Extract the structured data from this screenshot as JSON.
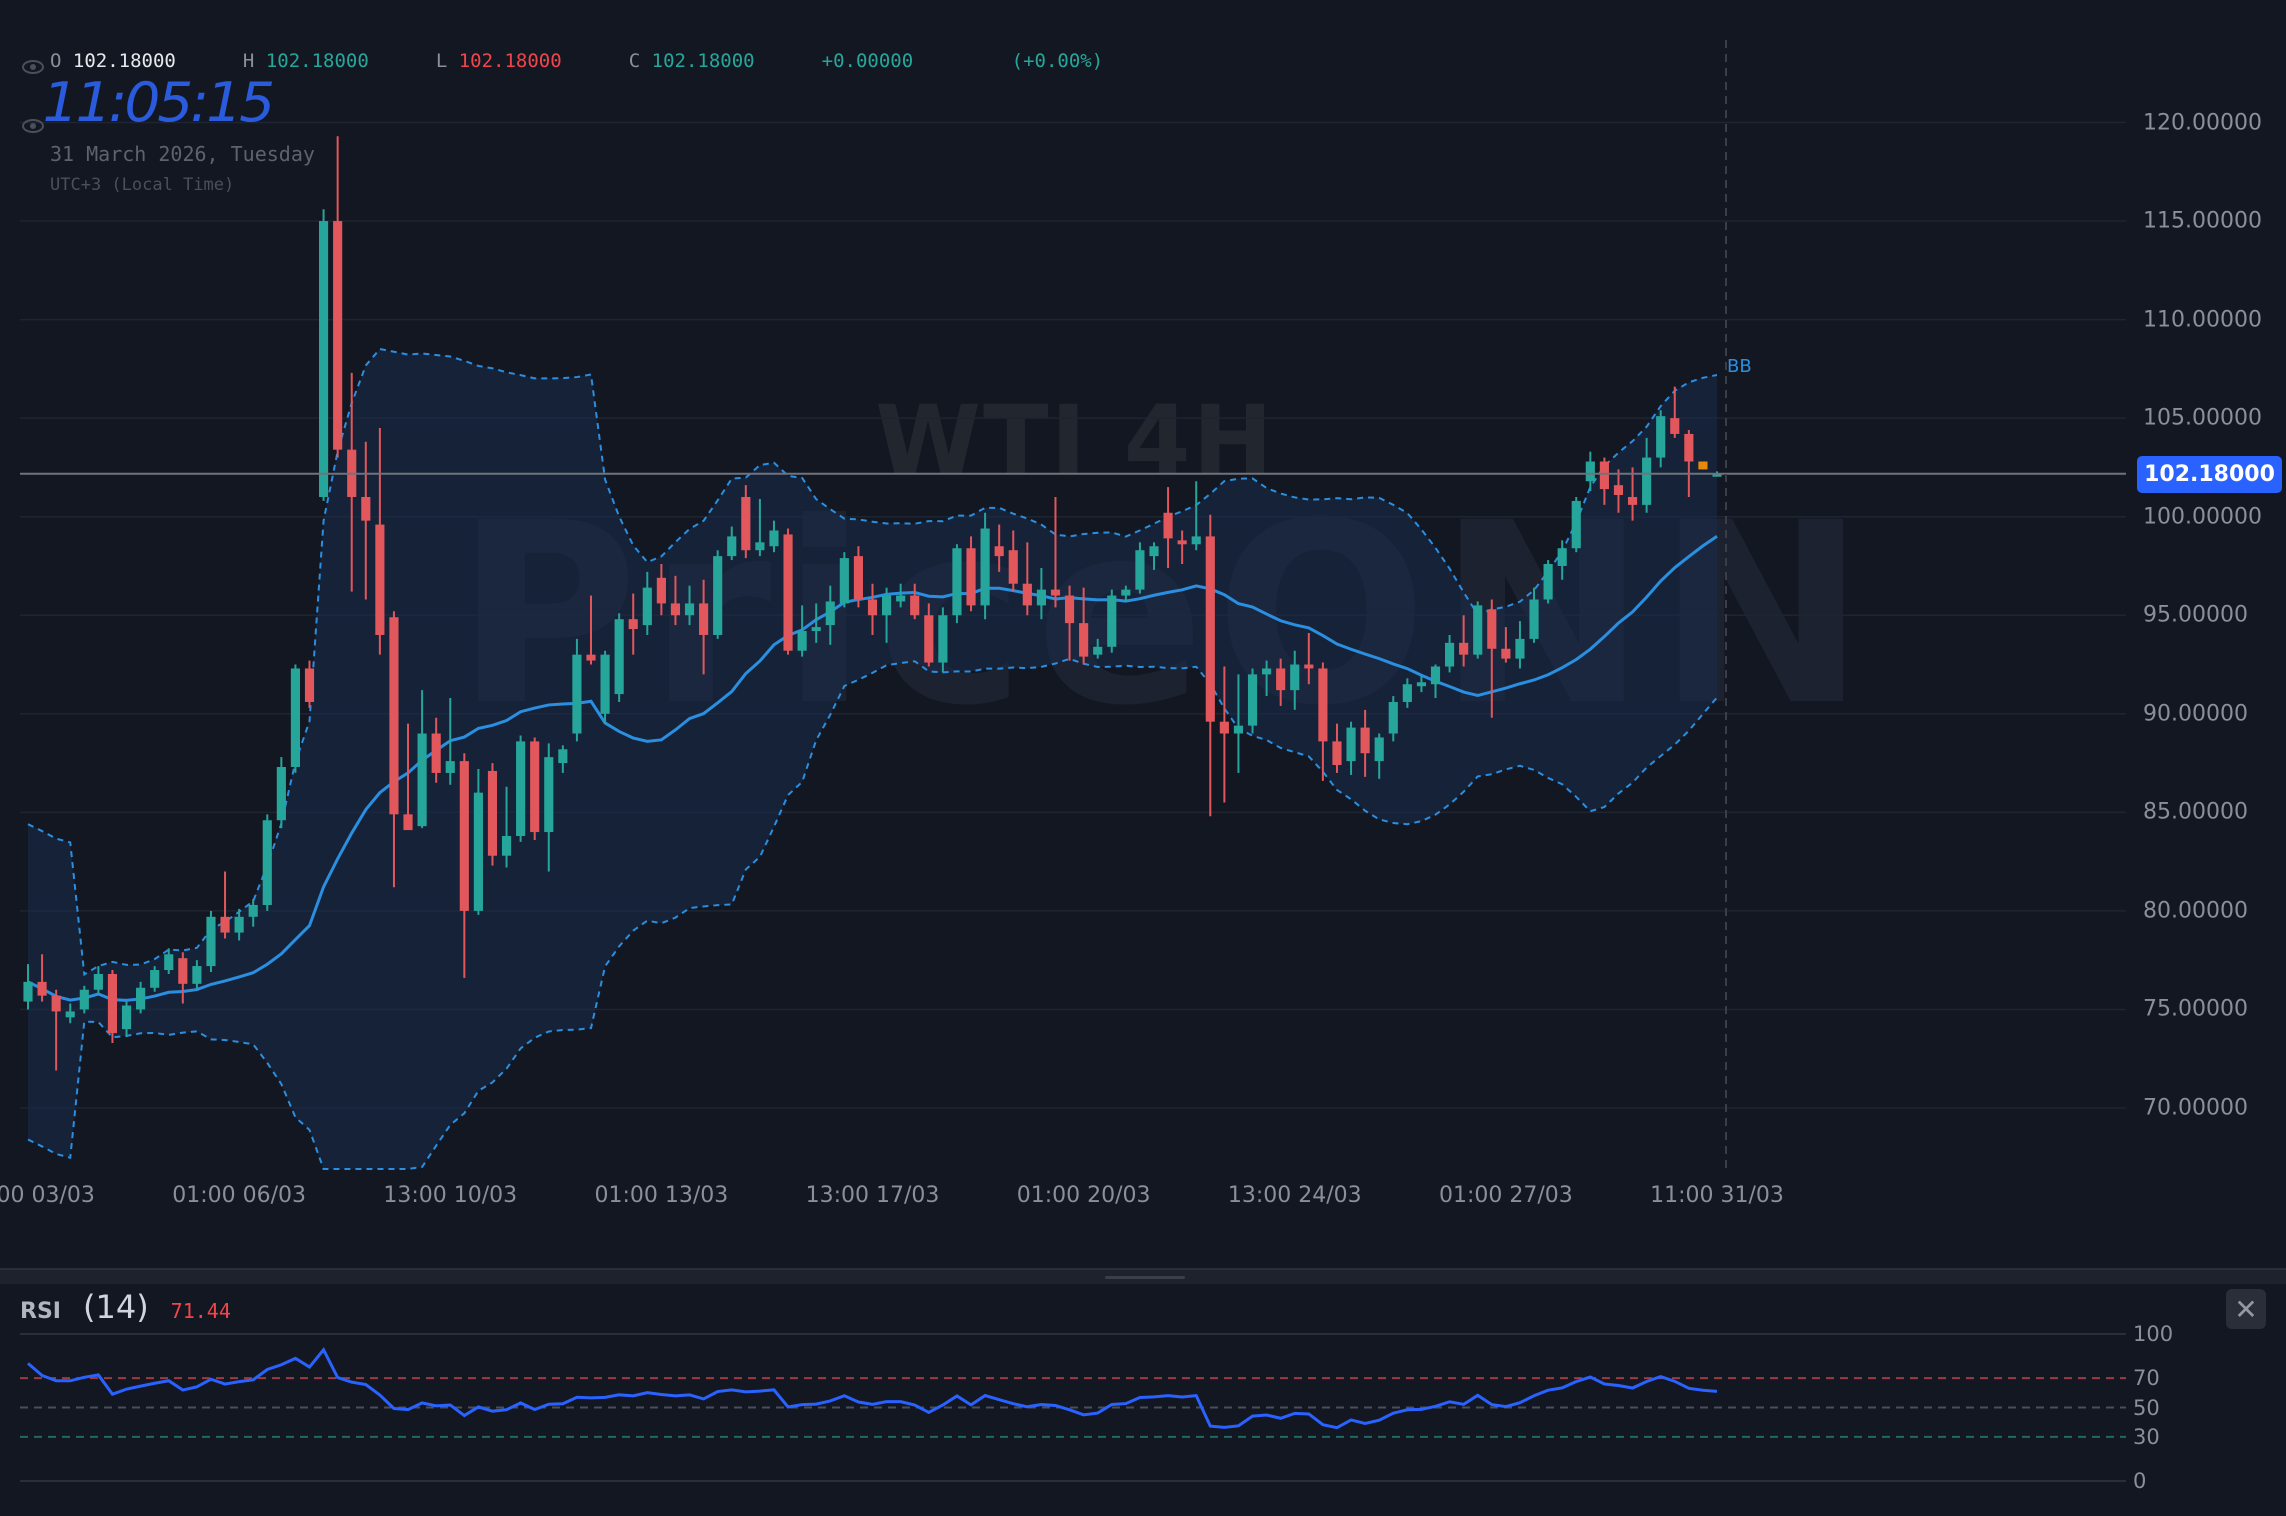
{
  "legend": {
    "open_label": "O",
    "open": "102.18000",
    "high_label": "H",
    "high": "102.18000",
    "low_label": "L",
    "low": "102.18000",
    "close_label": "C",
    "close": "102.18000",
    "change": "+0.00000",
    "change_pct": "(+0.00%)"
  },
  "clock": {
    "time": "11:05:15",
    "date": "31 March 2026, Tuesday",
    "timezone": "UTC+3 (Local Time)"
  },
  "watermark": {
    "symbol": "WTI 4H",
    "logo": "PriceONN"
  },
  "current_price": "102.18000",
  "indicator_label": "BB",
  "colors": {
    "up": "#26a69a",
    "down": "#e2575c",
    "highlight": "#e8890c",
    "accent": "#2962ff",
    "bb": "#2a8fe0",
    "rsi": "#2962ff",
    "background": "#131722"
  },
  "rsi": {
    "name": "RSI",
    "length": "(14)",
    "value": "71.44",
    "levels": [
      "100",
      "70",
      "50",
      "30",
      "0"
    ]
  },
  "chart_data": {
    "type": "candlestick",
    "ylim": [
      66.9,
      124.2
    ],
    "y_ticks": [
      "120.00000",
      "115.00000",
      "110.00000",
      "105.00000",
      "100.00000",
      "95.00000",
      "90.00000",
      "85.00000",
      "80.00000",
      "75.00000",
      "70.00000"
    ],
    "x_ticks": [
      "01:00 03/03",
      "01:00 06/03",
      "13:00 10/03",
      "01:00 13/03",
      "13:00 17/03",
      "01:00 20/03",
      "13:00 24/03",
      "01:00 27/03",
      "11:00 31/03"
    ],
    "grid": true,
    "overlay": {
      "name": "BB",
      "period": 20,
      "stddev": 2
    },
    "highlight_candle": 119,
    "ohlc": [
      [
        75.4,
        77.3,
        75.0,
        76.4
      ],
      [
        76.4,
        77.8,
        75.4,
        75.7
      ],
      [
        75.7,
        76.0,
        71.9,
        74.9
      ],
      [
        74.6,
        75.3,
        74.3,
        74.9
      ],
      [
        75.0,
        76.2,
        74.8,
        76.0
      ],
      [
        76.0,
        77.2,
        75.8,
        76.8
      ],
      [
        76.8,
        77.0,
        73.3,
        73.8
      ],
      [
        74.0,
        75.4,
        73.6,
        75.2
      ],
      [
        75.0,
        76.4,
        74.8,
        76.1
      ],
      [
        76.1,
        77.2,
        75.9,
        77.0
      ],
      [
        77.0,
        78.1,
        76.8,
        77.8
      ],
      [
        77.6,
        77.9,
        75.3,
        76.3
      ],
      [
        76.3,
        77.5,
        76.0,
        77.2
      ],
      [
        77.2,
        80.0,
        76.9,
        79.7
      ],
      [
        79.7,
        82.0,
        78.6,
        78.9
      ],
      [
        78.9,
        80.1,
        78.5,
        79.7
      ],
      [
        79.7,
        80.6,
        79.2,
        80.3
      ],
      [
        80.3,
        84.9,
        80.0,
        84.6
      ],
      [
        84.6,
        87.8,
        84.2,
        87.3
      ],
      [
        87.3,
        92.5,
        87.0,
        92.3
      ],
      [
        92.3,
        92.7,
        90.3,
        90.6
      ],
      [
        101.0,
        115.6,
        100.8,
        115.0
      ],
      [
        115.0,
        119.3,
        103.0,
        103.4
      ],
      [
        103.4,
        107.3,
        96.2,
        101.0
      ],
      [
        101.0,
        103.8,
        95.8,
        99.8
      ],
      [
        99.6,
        104.5,
        93.0,
        94.0
      ],
      [
        94.9,
        95.2,
        81.2,
        84.9
      ],
      [
        84.9,
        89.5,
        84.3,
        84.1
      ],
      [
        84.3,
        91.2,
        84.2,
        89.0
      ],
      [
        89.0,
        89.8,
        86.5,
        87.0
      ],
      [
        87.0,
        90.8,
        86.4,
        87.6
      ],
      [
        87.6,
        88.0,
        76.6,
        80.0
      ],
      [
        80.0,
        87.2,
        79.8,
        86.0
      ],
      [
        87.1,
        87.5,
        82.3,
        82.8
      ],
      [
        82.8,
        86.3,
        82.2,
        83.8
      ],
      [
        83.8,
        88.9,
        83.5,
        88.6
      ],
      [
        88.6,
        88.8,
        83.6,
        84.0
      ],
      [
        84.0,
        88.5,
        82.0,
        87.8
      ],
      [
        87.5,
        88.4,
        87.0,
        88.2
      ],
      [
        89.0,
        93.8,
        88.6,
        93.0
      ],
      [
        93.0,
        96.0,
        92.5,
        92.7
      ],
      [
        90.0,
        93.2,
        89.5,
        93.0
      ],
      [
        91.0,
        95.1,
        90.6,
        94.8
      ],
      [
        94.8,
        96.1,
        93.0,
        94.3
      ],
      [
        94.5,
        97.2,
        94.0,
        96.4
      ],
      [
        96.9,
        97.6,
        95.0,
        95.6
      ],
      [
        95.6,
        97.0,
        94.5,
        95.0
      ],
      [
        95.0,
        96.5,
        94.5,
        95.6
      ],
      [
        95.6,
        96.8,
        92.0,
        94.0
      ],
      [
        94.0,
        98.3,
        93.8,
        98.0
      ],
      [
        98.0,
        99.5,
        97.8,
        99.0
      ],
      [
        101.0,
        101.6,
        97.9,
        98.3
      ],
      [
        98.3,
        100.9,
        98.0,
        98.7
      ],
      [
        98.5,
        99.8,
        98.2,
        99.3
      ],
      [
        99.1,
        99.4,
        93.0,
        93.2
      ],
      [
        93.2,
        95.5,
        92.9,
        94.2
      ],
      [
        94.2,
        95.6,
        93.6,
        94.4
      ],
      [
        94.5,
        96.5,
        93.5,
        95.7
      ],
      [
        95.6,
        98.2,
        95.4,
        97.9
      ],
      [
        98.0,
        98.5,
        95.4,
        95.8
      ],
      [
        95.8,
        96.6,
        94.0,
        95.0
      ],
      [
        95.0,
        96.4,
        93.6,
        96.0
      ],
      [
        95.7,
        96.6,
        95.4,
        96.0
      ],
      [
        96.0,
        96.6,
        94.8,
        95.0
      ],
      [
        95.0,
        95.6,
        92.4,
        92.6
      ],
      [
        92.6,
        95.4,
        92.1,
        95.0
      ],
      [
        95.0,
        98.6,
        94.6,
        98.4
      ],
      [
        98.4,
        99.0,
        95.2,
        95.5
      ],
      [
        95.5,
        100.2,
        94.8,
        99.4
      ],
      [
        98.5,
        99.6,
        97.2,
        98.0
      ],
      [
        98.3,
        99.3,
        96.2,
        96.6
      ],
      [
        96.6,
        98.7,
        95.0,
        95.5
      ],
      [
        95.5,
        97.4,
        94.8,
        96.3
      ],
      [
        96.3,
        101.0,
        95.4,
        96.0
      ],
      [
        96.0,
        96.5,
        92.7,
        94.6
      ],
      [
        94.6,
        96.4,
        92.5,
        92.9
      ],
      [
        93.0,
        93.8,
        92.8,
        93.4
      ],
      [
        93.4,
        96.3,
        93.1,
        96.0
      ],
      [
        96.0,
        96.5,
        95.7,
        96.3
      ],
      [
        96.3,
        98.7,
        96.1,
        98.3
      ],
      [
        98.0,
        98.7,
        97.3,
        98.5
      ],
      [
        100.2,
        101.5,
        97.4,
        98.9
      ],
      [
        98.8,
        99.3,
        97.6,
        98.6
      ],
      [
        98.6,
        101.8,
        98.3,
        99.0
      ],
      [
        99.0,
        100.1,
        84.8,
        89.6
      ],
      [
        89.6,
        92.4,
        85.5,
        89.0
      ],
      [
        89.0,
        92.0,
        87.0,
        89.4
      ],
      [
        89.4,
        92.3,
        89.0,
        92.0
      ],
      [
        92.0,
        92.7,
        90.9,
        92.3
      ],
      [
        92.3,
        92.8,
        90.4,
        91.2
      ],
      [
        91.2,
        93.2,
        90.2,
        92.5
      ],
      [
        92.5,
        94.1,
        91.5,
        92.3
      ],
      [
        92.3,
        92.6,
        86.6,
        88.6
      ],
      [
        88.6,
        89.5,
        87.0,
        87.4
      ],
      [
        87.6,
        89.6,
        86.9,
        89.3
      ],
      [
        89.3,
        90.2,
        86.8,
        88.0
      ],
      [
        87.6,
        89.0,
        86.7,
        88.8
      ],
      [
        89.0,
        90.9,
        88.6,
        90.6
      ],
      [
        90.6,
        91.8,
        90.3,
        91.5
      ],
      [
        91.4,
        91.9,
        91.1,
        91.6
      ],
      [
        91.5,
        92.5,
        90.8,
        92.4
      ],
      [
        92.4,
        94.0,
        92.1,
        93.6
      ],
      [
        93.6,
        95.0,
        92.4,
        93.0
      ],
      [
        93.0,
        95.7,
        92.8,
        95.5
      ],
      [
        95.3,
        95.8,
        89.8,
        93.3
      ],
      [
        93.3,
        94.4,
        92.6,
        92.8
      ],
      [
        92.8,
        94.7,
        92.3,
        93.8
      ],
      [
        93.8,
        96.4,
        93.6,
        95.8
      ],
      [
        95.8,
        97.8,
        95.6,
        97.6
      ],
      [
        97.5,
        98.8,
        96.8,
        98.4
      ],
      [
        98.4,
        101.0,
        98.2,
        100.8
      ],
      [
        101.8,
        103.3,
        101.3,
        102.8
      ],
      [
        102.8,
        103.0,
        100.6,
        101.4
      ],
      [
        101.6,
        102.4,
        100.2,
        101.1
      ],
      [
        101.0,
        102.5,
        99.8,
        100.6
      ],
      [
        100.6,
        104.0,
        100.2,
        103.0
      ],
      [
        103.0,
        105.4,
        102.5,
        105.1
      ],
      [
        105.0,
        106.6,
        104.0,
        104.2
      ],
      [
        104.2,
        104.4,
        101.0,
        102.8
      ],
      [
        102.8,
        102.8,
        102.4,
        102.4
      ],
      [
        102.18,
        102.3,
        102.1,
        102.18
      ]
    ]
  }
}
